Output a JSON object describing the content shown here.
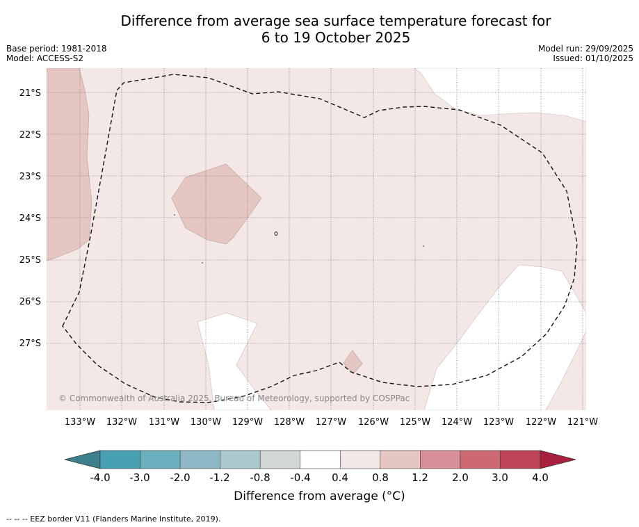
{
  "title": {
    "line1": "Difference from average sea surface temperature forecast for",
    "line2": "6 to 19 October 2025"
  },
  "meta_left": {
    "base_period": "Base period: 1981-2018",
    "model": "Model: ACCESS-S2"
  },
  "meta_right": {
    "model_run": "Model run: 29/09/2025",
    "issued": "Issued: 01/10/2025"
  },
  "map": {
    "lat_labels": [
      "21°S",
      "22°S",
      "23°S",
      "24°S",
      "25°S",
      "26°S",
      "27°S"
    ],
    "lon_labels": [
      "133°W",
      "132°W",
      "131°W",
      "130°W",
      "129°W",
      "128°W",
      "127°W",
      "126°W",
      "125°W",
      "124°W",
      "123°W",
      "122°W",
      "121°W"
    ],
    "copyright": "© Commonwealth of Australia 2025, Bureau of Meteorology, supported by COSPPac",
    "colors": {
      "anom_0_4_0_8": "#f4e8e7",
      "anom_0_8_1_2": "#e6c6c3",
      "neutral": "#ffffff"
    }
  },
  "colorbar": {
    "ticks": [
      "-4.0",
      "-3.0",
      "-2.0",
      "-1.2",
      "-0.8",
      "-0.4",
      "0.4",
      "0.8",
      "1.2",
      "2.0",
      "3.0",
      "4.0"
    ],
    "colors": [
      "#3c7f8d",
      "#47a0b2",
      "#6aafbe",
      "#8eb8c4",
      "#abc9ce",
      "#d2d6d7",
      "#ffffff",
      "#f4e8e7",
      "#e6c6c3",
      "#d98f97",
      "#cc6973",
      "#bf4457",
      "#a8203d"
    ],
    "label": "Difference from average (°C)"
  },
  "footnote": "--  --  -- EEZ border V11 (Flanders Marine Institute, 2019)."
}
